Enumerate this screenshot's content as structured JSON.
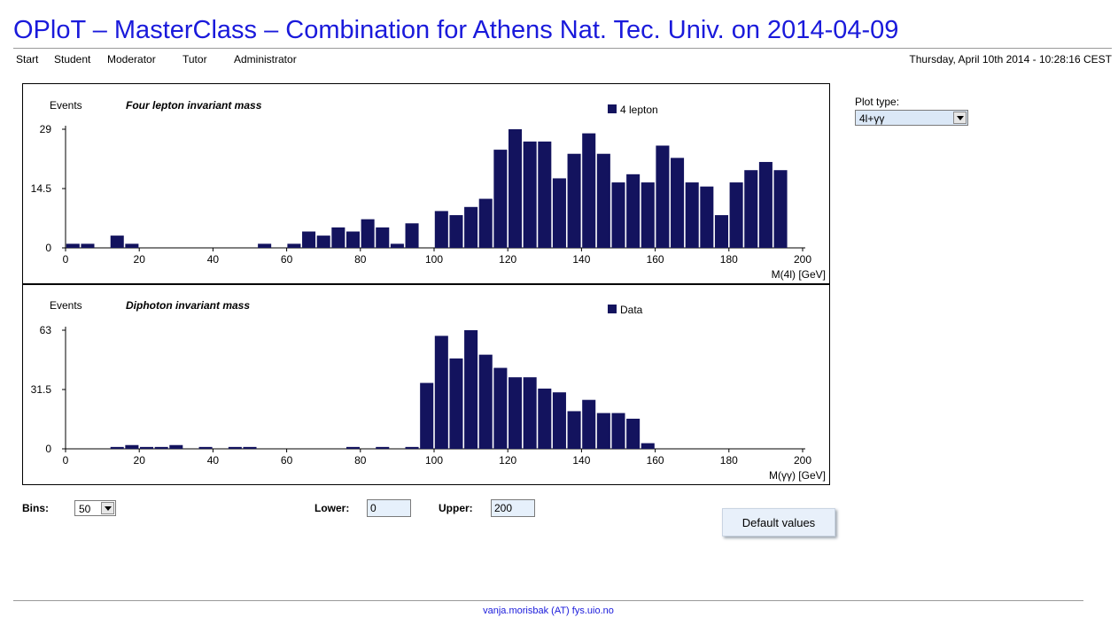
{
  "header": {
    "title": "OPloT – MasterClass – Combination for Athens Nat. Tec. Univ. on 2014-04-09"
  },
  "nav": {
    "items": [
      "Start",
      "Student",
      "Moderator",
      "Tutor",
      "Administrator"
    ]
  },
  "datetime": "Thursday, April 10th 2014 - 10:28:16 CEST",
  "colors": {
    "bar": "#13135e",
    "title": "#1a1adb"
  },
  "chart_data": [
    {
      "type": "bar",
      "title": "Four lepton invariant mass",
      "ylabel": "Events",
      "xlabel": "M(4l) [GeV]",
      "legend": [
        "4 lepton"
      ],
      "legend_position": "top-right",
      "xlim": [
        0,
        200
      ],
      "ylim": [
        0,
        29
      ],
      "yticks": [
        "0",
        "14.5",
        "29"
      ],
      "xticks": [
        "0",
        "20",
        "40",
        "60",
        "80",
        "100",
        "120",
        "140",
        "160",
        "180",
        "200"
      ],
      "bin_width": 4,
      "series": [
        {
          "name": "4 lepton",
          "values": [
            1,
            1,
            0,
            3,
            1,
            0,
            0,
            0,
            0,
            0,
            0,
            0,
            0,
            1,
            0,
            1,
            4,
            3,
            5,
            4,
            7,
            5,
            1,
            6,
            0,
            9,
            8,
            10,
            12,
            24,
            29,
            26,
            26,
            17,
            23,
            28,
            23,
            16,
            18,
            16,
            25,
            22,
            16,
            15,
            8,
            16,
            19,
            21,
            19,
            0
          ]
        }
      ]
    },
    {
      "type": "bar",
      "title": "Diphoton invariant mass",
      "ylabel": "Events",
      "xlabel": "M(γγ) [GeV]",
      "legend": [
        "Data"
      ],
      "legend_position": "top-right",
      "xlim": [
        0,
        200
      ],
      "ylim": [
        0,
        63
      ],
      "yticks": [
        "0",
        "31.5",
        "63"
      ],
      "xticks": [
        "0",
        "20",
        "40",
        "60",
        "80",
        "100",
        "120",
        "140",
        "160",
        "180",
        "200"
      ],
      "bin_width": 4,
      "series": [
        {
          "name": "Data",
          "values": [
            0,
            0,
            0,
            1,
            2,
            1,
            1,
            2,
            0,
            1,
            0,
            1,
            1,
            0,
            0,
            0,
            0,
            0,
            0,
            1,
            0,
            1,
            0,
            1,
            35,
            60,
            48,
            63,
            50,
            43,
            38,
            38,
            32,
            30,
            20,
            26,
            19,
            19,
            16,
            3,
            0,
            0,
            0,
            0,
            0,
            0,
            0,
            0,
            0,
            0
          ]
        }
      ]
    }
  ],
  "sidebar": {
    "plot_type_label": "Plot type:",
    "plot_type_value": "4l+γγ"
  },
  "controls": {
    "bins_label": "Bins:",
    "bins_value": "50",
    "lower_label": "Lower:",
    "lower_value": "0",
    "upper_label": "Upper:",
    "upper_value": "200",
    "default_button": "Default values"
  },
  "footer": {
    "contact": "vanja.morisbak (AT) fys.uio.no"
  }
}
